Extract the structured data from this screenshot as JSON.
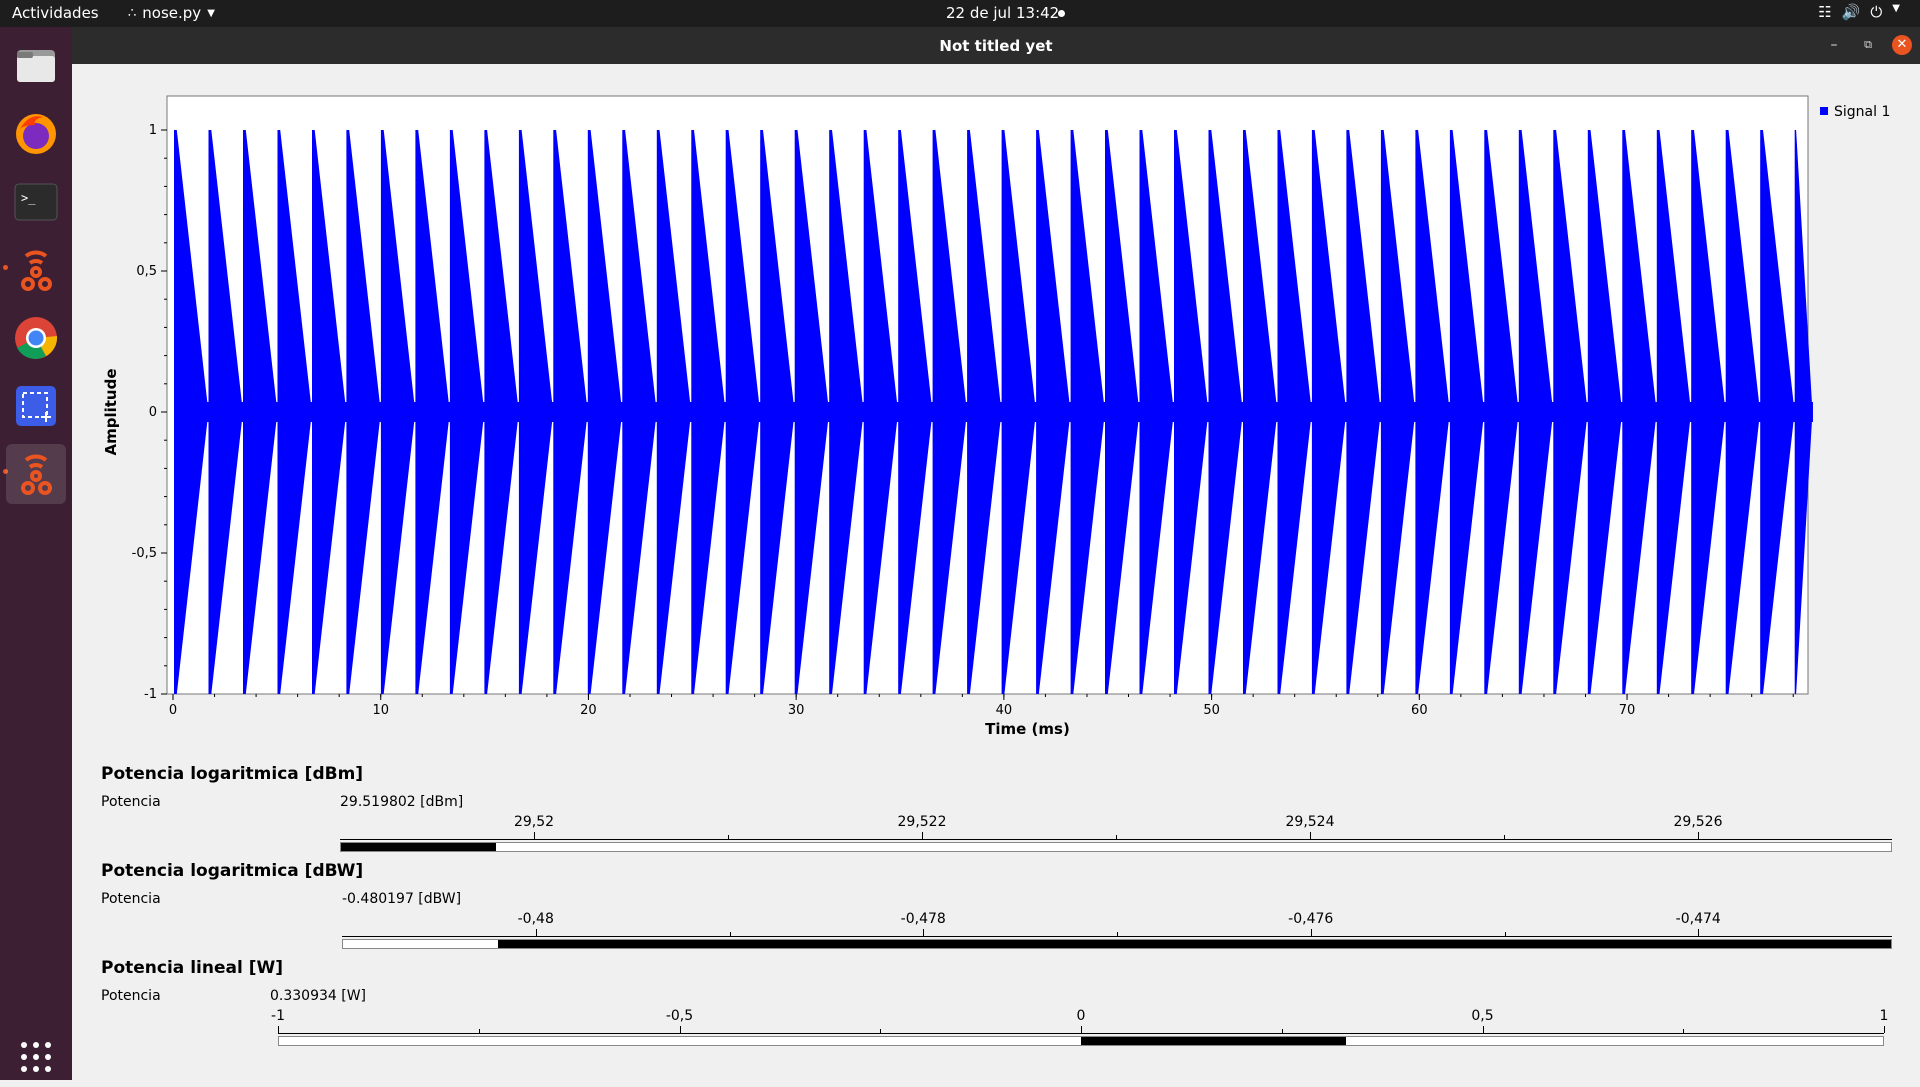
{
  "topbar": {
    "activities": "Actividades",
    "app_menu": "nose.py",
    "clock": "22 de jul  13:42"
  },
  "window": {
    "title": "Not titled yet"
  },
  "dock": {
    "items": [
      "files-icon",
      "firefox-icon",
      "terminal-icon",
      "gnuradio-icon",
      "chrome-icon",
      "screenshot-icon",
      "gnuradio-active-icon",
      "app-grid-icon"
    ]
  },
  "chart_data": {
    "type": "line",
    "xlabel": "Time (ms)",
    "ylabel": "Amplitude",
    "xlim": [
      0,
      79
    ],
    "ylim": [
      -1,
      1
    ],
    "x_ticks": [
      0,
      10,
      20,
      30,
      40,
      50,
      60,
      70
    ],
    "x_tick_labels": [
      "0",
      "10",
      "20",
      "30",
      "40",
      "50",
      "60",
      "70"
    ],
    "y_ticks": [
      1,
      0.5,
      0,
      -0.5,
      -1
    ],
    "y_tick_labels": [
      "1",
      "0,5",
      "0",
      "-0,5",
      "-1"
    ],
    "series": [
      {
        "name": "Signal 1",
        "color": "#0000ff",
        "pattern": "sawtooth-envelope chirp bursts",
        "period_ms": 1.66,
        "amplitude": 1
      }
    ],
    "legend": "top-right"
  },
  "gauges": [
    {
      "title": "Potencia logaritmica [dBm]",
      "label": "Potencia",
      "value_text": "29.519802 [dBm]",
      "value": 29.519802,
      "min": 29.519,
      "max": 29.527,
      "tick_labels": [
        "29,52",
        "29,522",
        "29,524",
        "29,526"
      ],
      "tick_values": [
        29.52,
        29.522,
        29.524,
        29.526
      ]
    },
    {
      "title": "Potencia logaritmica [dBW]",
      "label": "Potencia",
      "value_text": "-0.480197 [dBW]",
      "value": -0.480197,
      "min": -0.481,
      "max": -0.473,
      "tick_labels": [
        "-0,48",
        "-0,478",
        "-0,476",
        "-0,474"
      ],
      "tick_values": [
        -0.48,
        -0.478,
        -0.476,
        -0.474
      ]
    },
    {
      "title": "Potencia lineal [W]",
      "label": "Potencia",
      "value_text": "0.330934 [W]",
      "value": 0.330934,
      "min": -1,
      "max": 1,
      "tick_labels": [
        "-1",
        "-0,5",
        "0",
        "0,5",
        "1"
      ],
      "tick_values": [
        -1,
        -0.5,
        0,
        0.5,
        1
      ]
    }
  ]
}
